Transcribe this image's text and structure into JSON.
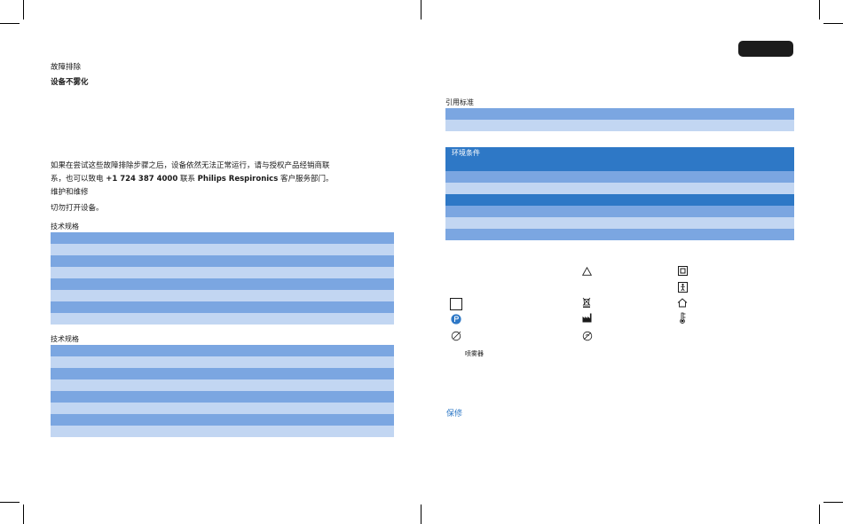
{
  "left_page": {
    "section_heading": "故障排除",
    "subheading": "设备不雾化",
    "contact_paragraph": {
      "line1": "如果在尝试这些故障排除步骤之后，设备依然无法正常运行，请与授权产品经销商联",
      "line2_prefix": "系，也可以致电 ",
      "phone": "+1 724 387 4000",
      "line2_mid": " 联系 ",
      "company": "Philips Respironics",
      "line2_suffix": " 客户服务部门。"
    },
    "maintenance_heading": "维护和维修",
    "maintenance_text": "切勿打开设备。",
    "spec_table_1_title": "技术规格",
    "spec_table_2_title": "技术规格"
  },
  "right_page": {
    "standards_title": "引用标准",
    "environment_header": "环境条件",
    "nebulizer_label": "喷雾器",
    "warranty_heading": "保修"
  },
  "icons": [
    "triangle-warning-icon",
    "class-ii-equipment-icon",
    "type-bf-applied-part-icon",
    "square-box-icon",
    "weee-crossed-bin-icon",
    "indoor-use-only-icon",
    "blue-circle-icon",
    "manufacturer-icon",
    "temperature-limit-icon",
    "fragile-circle-icon",
    "crossed-circle-icon"
  ],
  "colors": {
    "row_dark": "#2e78c6",
    "row_mid": "#7ba6e1",
    "row_light": "#c2d6f2",
    "accent": "#2e78c6",
    "tab": "#1c1c1c"
  }
}
